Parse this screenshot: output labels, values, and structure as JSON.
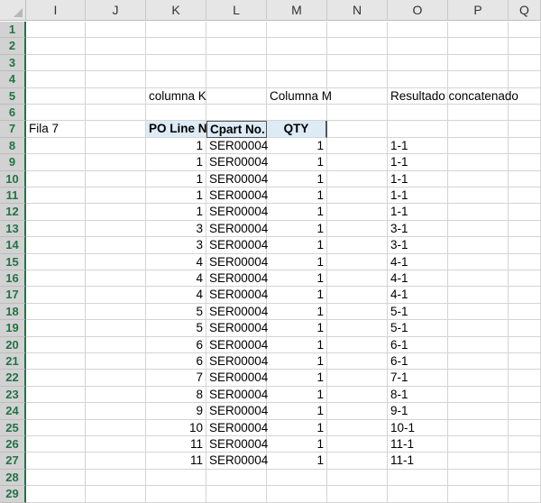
{
  "columns": [
    "I",
    "J",
    "K",
    "L",
    "M",
    "N",
    "O",
    "P",
    "Q"
  ],
  "rows": [
    1,
    2,
    3,
    4,
    5,
    6,
    7,
    8,
    9,
    10,
    11,
    12,
    13,
    14,
    15,
    16,
    17,
    18,
    19,
    20,
    21,
    22,
    23,
    24,
    25,
    26,
    27,
    28,
    29
  ],
  "labels": {
    "K5": "columna K",
    "M5": "Columna M",
    "O5": "Resultado concatenado",
    "I7": "Fila 7"
  },
  "table": {
    "headers": [
      "PO Line No",
      "Cpart No.",
      "QTY"
    ],
    "header_fill": "#ddebf7",
    "rows": [
      {
        "po": "1",
        "part": "SER00004",
        "qty": "1",
        "concat": "1-1"
      },
      {
        "po": "1",
        "part": "SER00004",
        "qty": "1",
        "concat": "1-1"
      },
      {
        "po": "1",
        "part": "SER00004",
        "qty": "1",
        "concat": "1-1"
      },
      {
        "po": "1",
        "part": "SER00004",
        "qty": "1",
        "concat": "1-1"
      },
      {
        "po": "1",
        "part": "SER00004",
        "qty": "1",
        "concat": "1-1"
      },
      {
        "po": "3",
        "part": "SER00004",
        "qty": "1",
        "concat": "3-1"
      },
      {
        "po": "3",
        "part": "SER00004",
        "qty": "1",
        "concat": "3-1"
      },
      {
        "po": "4",
        "part": "SER00004",
        "qty": "1",
        "concat": "4-1"
      },
      {
        "po": "4",
        "part": "SER00004",
        "qty": "1",
        "concat": "4-1"
      },
      {
        "po": "4",
        "part": "SER00004",
        "qty": "1",
        "concat": "4-1"
      },
      {
        "po": "5",
        "part": "SER00004",
        "qty": "1",
        "concat": "5-1"
      },
      {
        "po": "5",
        "part": "SER00004",
        "qty": "1",
        "concat": "5-1"
      },
      {
        "po": "6",
        "part": "SER00004",
        "qty": "1",
        "concat": "6-1"
      },
      {
        "po": "6",
        "part": "SER00004",
        "qty": "1",
        "concat": "6-1"
      },
      {
        "po": "7",
        "part": "SER00004",
        "qty": "1",
        "concat": "7-1"
      },
      {
        "po": "8",
        "part": "SER00004",
        "qty": "1",
        "concat": "8-1"
      },
      {
        "po": "9",
        "part": "SER00004",
        "qty": "1",
        "concat": "9-1"
      },
      {
        "po": "10",
        "part": "SER00004",
        "qty": "1",
        "concat": "10-1"
      },
      {
        "po": "11",
        "part": "SER00004",
        "qty": "1",
        "concat": "11-1"
      },
      {
        "po": "11",
        "part": "SER00004",
        "qty": "1",
        "concat": "11-1"
      }
    ]
  }
}
